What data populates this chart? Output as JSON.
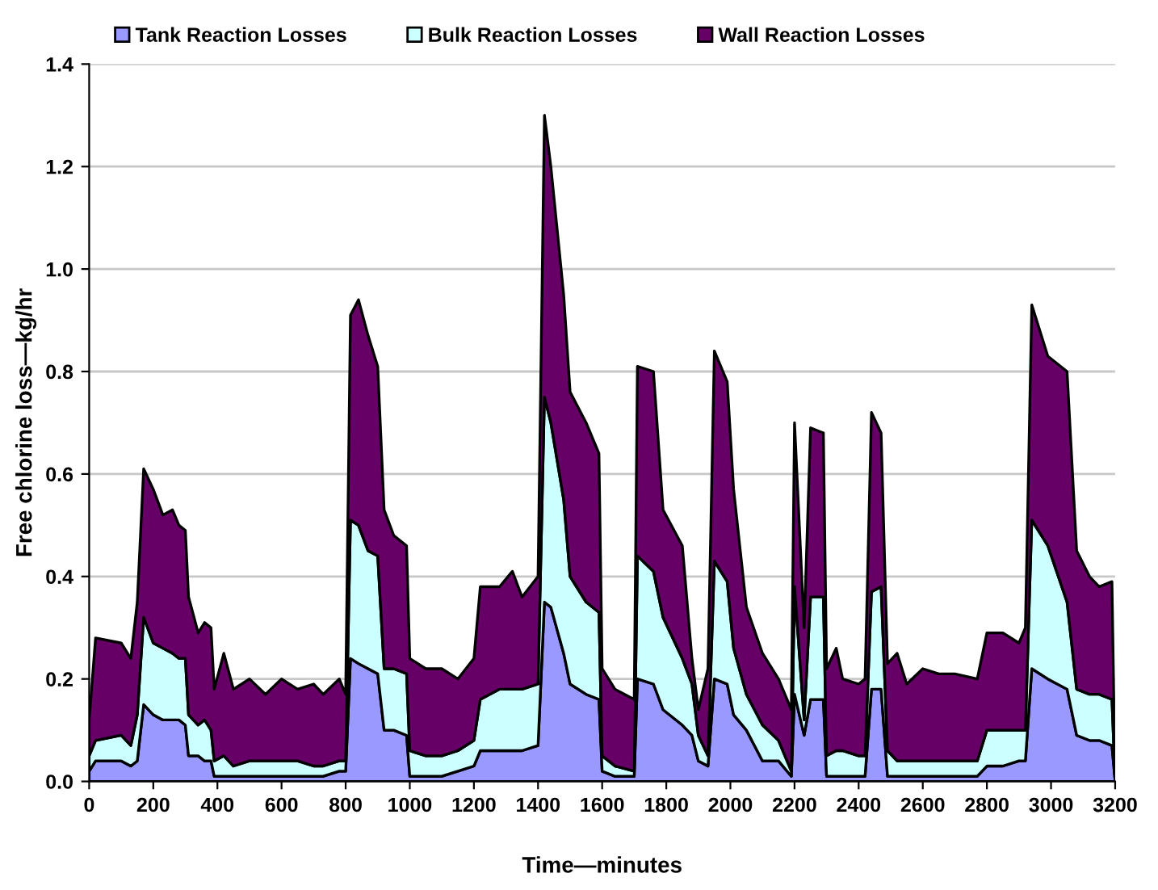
{
  "chart_data": {
    "type": "area",
    "stacked": true,
    "xlabel": "Time—minutes",
    "ylabel": "Free chlorine loss—kg/hr",
    "x": [
      0,
      20,
      100,
      130,
      150,
      170,
      200,
      230,
      260,
      280,
      300,
      310,
      340,
      360,
      380,
      390,
      420,
      450,
      500,
      550,
      600,
      650,
      700,
      730,
      780,
      800,
      815,
      840,
      870,
      900,
      920,
      950,
      990,
      1000,
      1050,
      1100,
      1150,
      1200,
      1220,
      1280,
      1320,
      1350,
      1400,
      1420,
      1440,
      1480,
      1500,
      1550,
      1590,
      1600,
      1640,
      1700,
      1710,
      1760,
      1790,
      1850,
      1880,
      1900,
      1930,
      1950,
      1990,
      2010,
      2050,
      2100,
      2150,
      2190,
      2200,
      2230,
      2250,
      2290,
      2300,
      2330,
      2350,
      2400,
      2420,
      2440,
      2470,
      2490,
      2520,
      2550,
      2600,
      2650,
      2700,
      2770,
      2800,
      2850,
      2900,
      2920,
      2940,
      2990,
      3050,
      3080,
      3120,
      3150,
      3190,
      3200
    ],
    "series": [
      {
        "name": "Tank Reaction Losses",
        "color": "#9999ff",
        "values": [
          0.02,
          0.04,
          0.04,
          0.03,
          0.04,
          0.15,
          0.13,
          0.12,
          0.12,
          0.12,
          0.11,
          0.05,
          0.05,
          0.04,
          0.04,
          0.01,
          0.01,
          0.01,
          0.01,
          0.01,
          0.01,
          0.01,
          0.01,
          0.01,
          0.02,
          0.02,
          0.24,
          0.23,
          0.22,
          0.21,
          0.1,
          0.1,
          0.09,
          0.01,
          0.01,
          0.01,
          0.02,
          0.03,
          0.06,
          0.06,
          0.06,
          0.06,
          0.07,
          0.35,
          0.34,
          0.25,
          0.19,
          0.17,
          0.16,
          0.02,
          0.01,
          0.01,
          0.2,
          0.19,
          0.14,
          0.11,
          0.09,
          0.04,
          0.03,
          0.2,
          0.19,
          0.13,
          0.1,
          0.04,
          0.04,
          0.01,
          0.17,
          0.09,
          0.16,
          0.16,
          0.01,
          0.01,
          0.01,
          0.01,
          0.01,
          0.18,
          0.18,
          0.01,
          0.01,
          0.01,
          0.01,
          0.01,
          0.01,
          0.01,
          0.03,
          0.03,
          0.04,
          0.04,
          0.22,
          0.2,
          0.18,
          0.09,
          0.08,
          0.08,
          0.07,
          0
        ]
      },
      {
        "name": "Bulk Reaction Losses",
        "color": "#ccffff",
        "values": [
          0.03,
          0.04,
          0.05,
          0.04,
          0.09,
          0.17,
          0.14,
          0.14,
          0.13,
          0.12,
          0.13,
          0.08,
          0.06,
          0.08,
          0.06,
          0.03,
          0.04,
          0.02,
          0.03,
          0.03,
          0.03,
          0.03,
          0.02,
          0.02,
          0.02,
          0.02,
          0.27,
          0.27,
          0.23,
          0.23,
          0.12,
          0.12,
          0.12,
          0.05,
          0.04,
          0.04,
          0.04,
          0.05,
          0.1,
          0.12,
          0.12,
          0.12,
          0.12,
          0.4,
          0.36,
          0.3,
          0.21,
          0.18,
          0.17,
          0.03,
          0.02,
          0.01,
          0.24,
          0.22,
          0.18,
          0.13,
          0.1,
          0.05,
          0.02,
          0.23,
          0.2,
          0.13,
          0.07,
          0.07,
          0.04,
          0.01,
          0.21,
          0.03,
          0.2,
          0.2,
          0.04,
          0.05,
          0.05,
          0.04,
          0.04,
          0.19,
          0.2,
          0.05,
          0.03,
          0.03,
          0.03,
          0.03,
          0.03,
          0.03,
          0.07,
          0.07,
          0.06,
          0.06,
          0.29,
          0.26,
          0.17,
          0.09,
          0.09,
          0.09,
          0.09,
          0
        ]
      },
      {
        "name": "Wall Reaction Losses",
        "color": "#660066",
        "values": [
          0.07,
          0.2,
          0.18,
          0.17,
          0.22,
          0.29,
          0.3,
          0.26,
          0.28,
          0.26,
          0.25,
          0.23,
          0.18,
          0.19,
          0.2,
          0.14,
          0.2,
          0.15,
          0.16,
          0.13,
          0.16,
          0.14,
          0.16,
          0.14,
          0.16,
          0.13,
          0.4,
          0.44,
          0.42,
          0.37,
          0.31,
          0.26,
          0.25,
          0.18,
          0.17,
          0.17,
          0.14,
          0.16,
          0.22,
          0.2,
          0.23,
          0.18,
          0.21,
          0.55,
          0.5,
          0.4,
          0.36,
          0.35,
          0.31,
          0.17,
          0.15,
          0.14,
          0.37,
          0.39,
          0.21,
          0.22,
          0.05,
          0.05,
          0.17,
          0.41,
          0.39,
          0.31,
          0.17,
          0.14,
          0.12,
          0.12,
          0.32,
          0.18,
          0.33,
          0.32,
          0.17,
          0.2,
          0.14,
          0.14,
          0.15,
          0.35,
          0.3,
          0.17,
          0.21,
          0.15,
          0.18,
          0.17,
          0.17,
          0.16,
          0.19,
          0.19,
          0.17,
          0.2,
          0.42,
          0.37,
          0.45,
          0.27,
          0.23,
          0.21,
          0.23,
          0
        ]
      }
    ],
    "xlim": [
      0,
      3200
    ],
    "xticks": [
      0,
      200,
      400,
      600,
      800,
      1000,
      1200,
      1400,
      1600,
      1800,
      2000,
      2200,
      2400,
      2600,
      2800,
      3000,
      3200
    ],
    "ylim": [
      0,
      1.4
    ],
    "yticks": [
      {
        "value": 0,
        "label": "0.0"
      },
      {
        "value": 0.2,
        "label": "0.2"
      },
      {
        "value": 0.4,
        "label": "0.4"
      },
      {
        "value": 0.6,
        "label": "0.6"
      },
      {
        "value": 0.8,
        "label": "0.8"
      },
      {
        "value": 1.0,
        "label": "1.0"
      },
      {
        "value": 1.2,
        "label": "1.2"
      },
      {
        "value": 1.4,
        "label": "1.4"
      }
    ],
    "grid": "y",
    "legend": "top"
  }
}
